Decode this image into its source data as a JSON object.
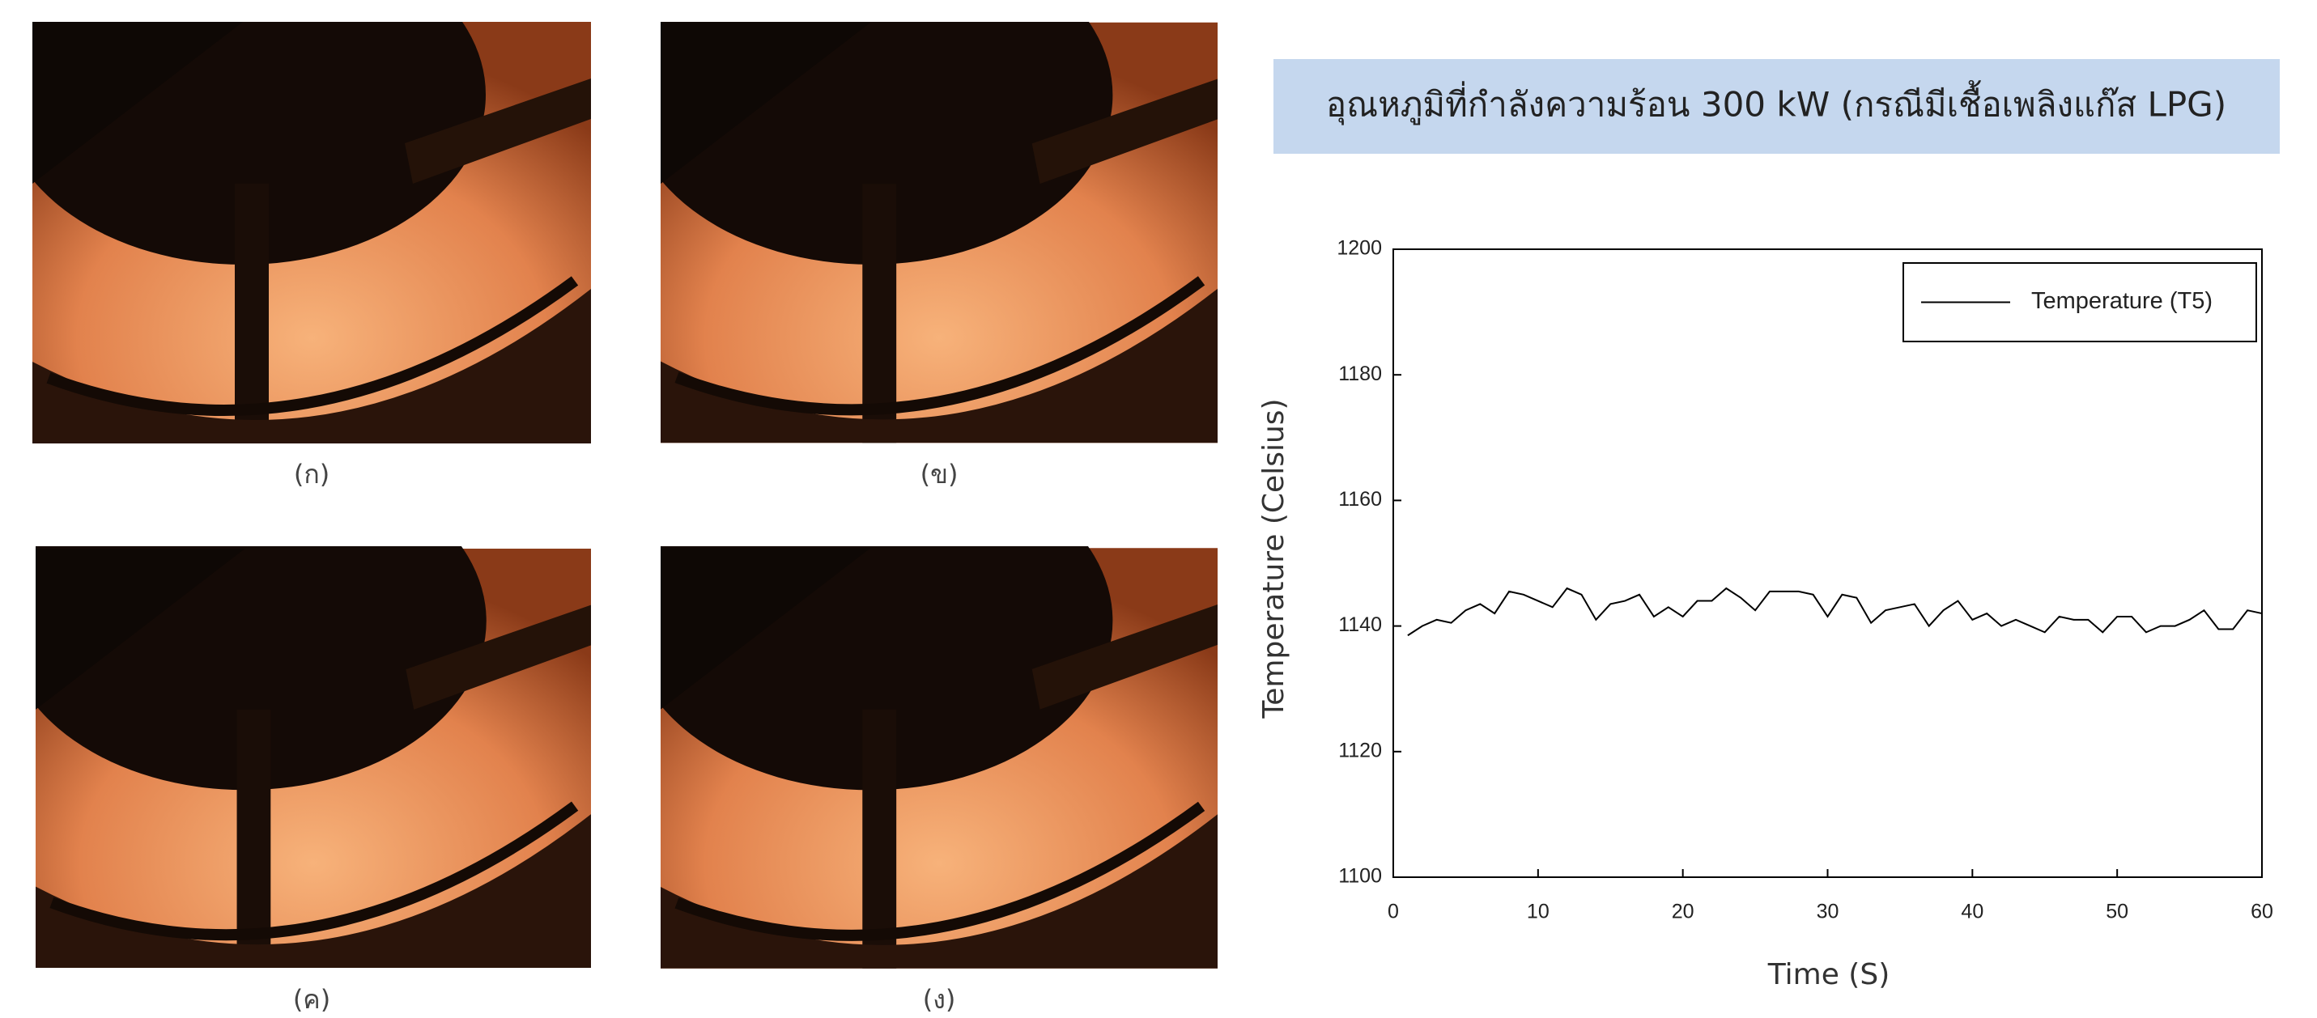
{
  "images": [
    {
      "caption": "(ก)"
    },
    {
      "caption": "(ข)"
    },
    {
      "caption": "(ค)"
    },
    {
      "caption": "(ง)"
    }
  ],
  "chart_data": {
    "type": "line",
    "title": "อุณหภูมิที่กำลังความร้อน 300 kW (กรณีมีเชื้อเพลิงแก๊ส LPG)",
    "x_label": "Time (S)",
    "y_label": "Temperature (Celsius)",
    "x": [
      1,
      2,
      3,
      4,
      5,
      6,
      7,
      8,
      9,
      10,
      11,
      12,
      13,
      14,
      15,
      16,
      17,
      18,
      19,
      20,
      21,
      22,
      23,
      24,
      25,
      26,
      27,
      28,
      29,
      30,
      31,
      32,
      33,
      34,
      35,
      36,
      37,
      38,
      39,
      40,
      41,
      42,
      43,
      44,
      45,
      46,
      47,
      48,
      49,
      50,
      51,
      52,
      53,
      54,
      55,
      56,
      57,
      58,
      59,
      60
    ],
    "series": [
      {
        "name": "Temperature (T5)",
        "color": "#000000",
        "values": [
          1138.5,
          1140,
          1141,
          1140.5,
          1142.5,
          1143.5,
          1142,
          1145.5,
          1145,
          1144,
          1143,
          1146,
          1145,
          1141,
          1143.5,
          1144,
          1145,
          1141.5,
          1143,
          1141.5,
          1144,
          1144,
          1146,
          1144.5,
          1142.5,
          1145.5,
          1145.5,
          1145.5,
          1145,
          1141.5,
          1145,
          1144.5,
          1140.5,
          1142.5,
          1143,
          1143.5,
          1140,
          1142.5,
          1144,
          1141,
          1142,
          1140,
          1141,
          1140,
          1139,
          1141.5,
          1141,
          1141,
          1139,
          1141.5,
          1141.5,
          1139,
          1140,
          1140,
          1141,
          1142.5,
          1139.5,
          1139.5,
          1142.5,
          1142
        ]
      }
    ],
    "xlim": [
      0,
      60
    ],
    "xticks": [
      0,
      10,
      20,
      30,
      40,
      50,
      60
    ],
    "ylim": [
      1100,
      1200
    ],
    "yticks": [
      1100,
      1120,
      1140,
      1160,
      1180,
      1200
    ],
    "grid": false,
    "legend": "upper right"
  }
}
